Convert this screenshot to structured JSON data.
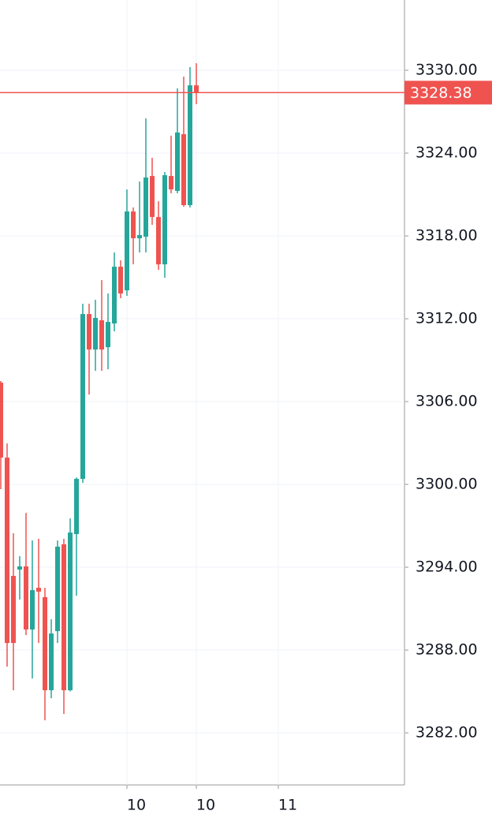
{
  "chart_data": {
    "type": "candlestick",
    "categories": [
      null,
      null,
      null,
      null,
      null,
      null,
      null,
      null,
      null,
      null,
      null,
      null,
      null,
      null,
      null,
      null,
      null,
      null,
      null,
      null,
      "10",
      null,
      null,
      null,
      null,
      null,
      null,
      null,
      null,
      null,
      null,
      "10",
      null,
      null,
      null,
      null,
      null,
      null,
      null,
      null,
      null,
      null,
      null,
      null,
      "11"
    ],
    "open": [
      3307.37,
      3301.94,
      3293.37,
      3293.83,
      3294.06,
      3289.49,
      3292.51,
      3291.83,
      3285.09,
      3289.37,
      3295.66,
      3285.09,
      3296.4,
      3300.4,
      3312.34,
      3309.77,
      3311.89,
      3309.94,
      3311.66,
      3315.77,
      3314.06,
      3319.77,
      3317.83,
      3317.94,
      3322.34,
      3319.37,
      3315.94,
      3322.34,
      3321.26,
      3325.37,
      3320.23,
      3328.91,
      null,
      null,
      null,
      null,
      null,
      null,
      null,
      null,
      null,
      null,
      null,
      null,
      null
    ],
    "high": [
      3307.49,
      3302.97,
      3296.46,
      3294.8,
      3297.94,
      3295.94,
      3296.06,
      3292.51,
      3290.23,
      3295.94,
      3296.06,
      3297.54,
      3300.5,
      3313.09,
      3313.09,
      3313.37,
      3314.8,
      3313.83,
      3316.8,
      3316.23,
      3321.37,
      3320.06,
      3321.94,
      3326.51,
      3323.66,
      3320.51,
      3322.63,
      3325.26,
      3328.69,
      3329.54,
      3330.23,
      3330.51,
      null,
      null,
      null,
      null,
      null,
      null,
      null,
      null,
      null,
      null,
      null,
      null,
      null
    ],
    "low": [
      3299.66,
      3286.8,
      3285.09,
      3291.66,
      3289.09,
      3285.94,
      3288.51,
      3282.91,
      3284.51,
      3288.51,
      3283.37,
      3285.0,
      3291.94,
      3300.11,
      3306.51,
      3308.23,
      3308.23,
      3308.34,
      3311.09,
      3313.49,
      3313.66,
      3315.94,
      3316.8,
      3316.8,
      3318.8,
      3315.54,
      3314.97,
      3321.09,
      3321.09,
      3320.11,
      3320.06,
      3327.54,
      null,
      null,
      null,
      null,
      null,
      null,
      null,
      null,
      null,
      null,
      null,
      null,
      null
    ],
    "close": [
      3301.94,
      3288.51,
      3288.51,
      3294.06,
      3289.49,
      3292.34,
      3292.23,
      3285.09,
      3289.2,
      3295.49,
      3285.09,
      3296.51,
      3300.4,
      3312.34,
      3309.77,
      3312.06,
      3309.77,
      3311.77,
      3315.77,
      3313.83,
      3319.77,
      3317.83,
      3318.06,
      3322.23,
      3319.37,
      3315.94,
      3322.4,
      3321.37,
      3325.49,
      3320.23,
      3328.91,
      3328.38,
      null,
      null,
      null,
      null,
      null,
      null,
      null,
      null,
      null,
      null,
      null,
      null,
      null
    ],
    "up_color": "#26a69a",
    "down_color": "#ef5350",
    "last_price": 3328.38,
    "last_price_color": "#ef5350",
    "ylim": [
      3278.23,
      3335.09
    ],
    "yticks": [
      {
        "value": 3282,
        "label": "3282.00"
      },
      {
        "value": 3288,
        "label": "3288.00"
      },
      {
        "value": 3294,
        "label": "3294.00"
      },
      {
        "value": 3300,
        "label": "3300.00"
      },
      {
        "value": 3306,
        "label": "3306.00"
      },
      {
        "value": 3312,
        "label": "3312.00"
      },
      {
        "value": 3318,
        "label": "3318.00"
      },
      {
        "value": 3324,
        "label": "3324.00"
      },
      {
        "value": 3330,
        "label": "3330.00"
      }
    ],
    "grid": true
  }
}
